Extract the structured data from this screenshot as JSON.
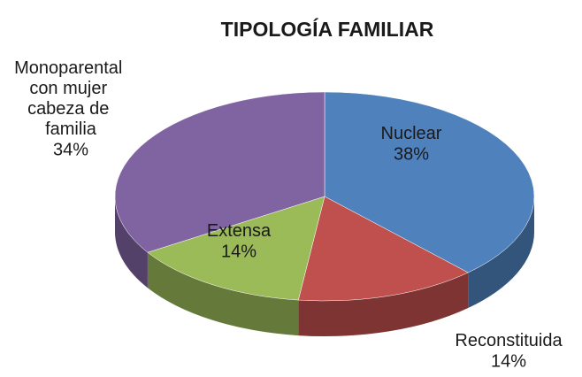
{
  "chart_data": {
    "type": "pie",
    "title": "TIPOLOGÍA FAMILIAR",
    "categories": [
      "Nuclear",
      "Reconstituida",
      "Extensa",
      "Monoparental con mujer cabeza de familia"
    ],
    "values": [
      38,
      14,
      14,
      34
    ],
    "value_labels": [
      "38%",
      "14%",
      "14%",
      "34%"
    ],
    "colors": [
      "#4f81bd",
      "#c0504d",
      "#9bbb59",
      "#8064a2"
    ],
    "three_d": true
  }
}
